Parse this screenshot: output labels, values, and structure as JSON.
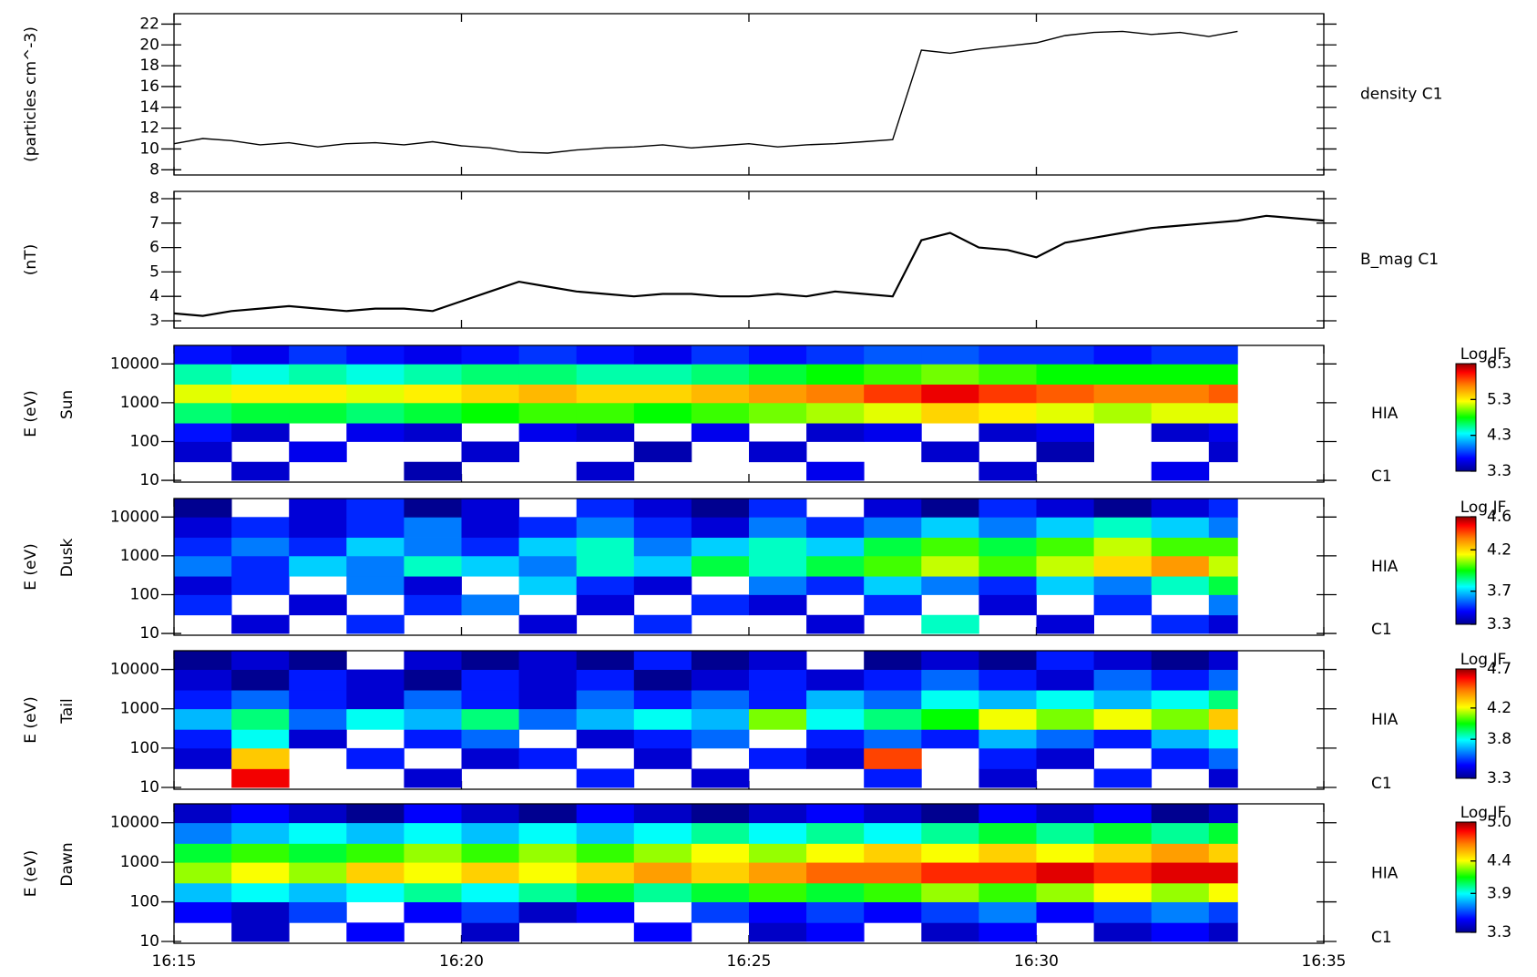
{
  "time_axis": {
    "xlim": [
      "16:15",
      "16:35"
    ],
    "xticks": [
      "16:15",
      "16:20",
      "16:25",
      "16:30",
      "16:35"
    ]
  },
  "chart_data": [
    {
      "type": "line",
      "ylabel": "(particles cm^-3)",
      "ylim": [
        7.5,
        23
      ],
      "yticks": [
        8,
        10,
        12,
        14,
        16,
        18,
        20,
        22
      ],
      "x": [
        "16:15",
        "16:15:30",
        "16:16",
        "16:16:30",
        "16:17",
        "16:17:30",
        "16:18",
        "16:18:30",
        "16:19",
        "16:19:30",
        "16:20",
        "16:20:30",
        "16:21",
        "16:21:30",
        "16:22",
        "16:22:30",
        "16:23",
        "16:23:30",
        "16:24",
        "16:24:30",
        "16:25",
        "16:25:30",
        "16:26",
        "16:26:30",
        "16:27",
        "16:27:30",
        "16:28",
        "16:28:30",
        "16:29",
        "16:29:30",
        "16:30",
        "16:30:30",
        "16:31",
        "16:31:30",
        "16:32",
        "16:32:30",
        "16:33",
        "16:33:30"
      ],
      "series": [
        {
          "name": "density C1",
          "color": "#000000",
          "values": [
            10.5,
            11,
            10.8,
            10.4,
            10.6,
            10.2,
            10.5,
            10.6,
            10.4,
            10.7,
            10.3,
            10.1,
            9.7,
            9.6,
            9.9,
            10.1,
            10.2,
            10.4,
            10.1,
            10.3,
            10.5,
            10.2,
            10.4,
            10.5,
            10.7,
            10.9,
            19.5,
            19.2,
            19.6,
            19.9,
            20.2,
            20.9,
            21.2,
            21.3,
            21.0,
            21.2,
            20.8,
            21.3
          ]
        }
      ]
    },
    {
      "type": "line",
      "ylabel": "(nT)",
      "ylim": [
        2.7,
        8.3
      ],
      "yticks": [
        3,
        4,
        5,
        6,
        7,
        8
      ],
      "x": [
        "16:15",
        "16:15:30",
        "16:16",
        "16:16:30",
        "16:17",
        "16:17:30",
        "16:18",
        "16:18:30",
        "16:19",
        "16:19:30",
        "16:20",
        "16:20:30",
        "16:21",
        "16:21:30",
        "16:22",
        "16:22:30",
        "16:23",
        "16:23:30",
        "16:24",
        "16:24:30",
        "16:25",
        "16:25:30",
        "16:26",
        "16:26:30",
        "16:27",
        "16:27:30",
        "16:28",
        "16:28:30",
        "16:29",
        "16:29:30",
        "16:30",
        "16:30:30",
        "16:31",
        "16:31:30",
        "16:32",
        "16:32:30",
        "16:33",
        "16:33:30",
        "16:34",
        "16:34:30",
        "16:35"
      ],
      "series": [
        {
          "name": "B_mag C1",
          "color": "#000000",
          "values": [
            3.3,
            3.2,
            3.4,
            3.5,
            3.6,
            3.5,
            3.4,
            3.5,
            3.5,
            3.4,
            3.8,
            4.2,
            4.6,
            4.4,
            4.2,
            4.1,
            4.0,
            4.1,
            4.1,
            4.0,
            4.0,
            4.1,
            4.0,
            4.2,
            4.1,
            4.0,
            6.3,
            6.6,
            6.0,
            5.9,
            5.6,
            6.2,
            6.4,
            6.6,
            6.8,
            6.9,
            7.0,
            7.1,
            7.3,
            7.2,
            7.1
          ]
        }
      ]
    },
    {
      "type": "heatmap",
      "ylabel": "E (eV)",
      "panel_label": "Sun",
      "instrument": "HIA",
      "spacecraft": "C1",
      "log_y": true,
      "colormap": "rainbow",
      "ylim": [
        9,
        30000
      ],
      "yticks": [
        10,
        100,
        1000,
        10000
      ],
      "xbins": [
        "16:15",
        "16:16",
        "16:17",
        "16:18",
        "16:19",
        "16:20",
        "16:21",
        "16:22",
        "16:23",
        "16:24",
        "16:25",
        "16:26",
        "16:27",
        "16:28",
        "16:29",
        "16:30",
        "16:31",
        "16:32",
        "16:33",
        "16:33:30"
      ],
      "ybins": [
        10,
        30,
        100,
        300,
        1000,
        3000,
        10000,
        30000
      ],
      "colorbar_title": "Log JF",
      "zlim": [
        3.3,
        6.3
      ],
      "zticks": [
        3.3,
        4.3,
        5.3,
        6.3
      ],
      "z": [
        [
          null,
          3.5,
          null,
          null,
          3.4,
          null,
          null,
          3.5,
          null,
          null,
          null,
          3.6,
          null,
          null,
          3.5,
          null,
          null,
          3.6,
          null
        ],
        [
          3.5,
          null,
          3.6,
          null,
          null,
          3.5,
          null,
          null,
          3.4,
          null,
          3.5,
          null,
          null,
          3.5,
          null,
          3.4,
          null,
          null,
          3.5
        ],
        [
          3.7,
          3.5,
          null,
          3.6,
          3.5,
          null,
          3.6,
          3.5,
          null,
          3.6,
          null,
          3.5,
          3.6,
          null,
          3.5,
          3.6,
          null,
          3.5,
          3.6
        ],
        [
          4.6,
          4.7,
          4.7,
          4.6,
          4.7,
          4.8,
          4.9,
          4.9,
          4.8,
          4.9,
          5.0,
          5.1,
          5.2,
          5.4,
          5.3,
          5.2,
          5.1,
          5.2,
          5.2
        ],
        [
          5.2,
          5.3,
          5.3,
          5.2,
          5.3,
          5.4,
          5.5,
          5.4,
          5.4,
          5.5,
          5.6,
          5.7,
          5.9,
          6.1,
          5.9,
          5.8,
          5.7,
          5.7,
          5.8
        ],
        [
          4.5,
          4.4,
          4.5,
          4.4,
          4.5,
          4.6,
          4.6,
          4.5,
          4.5,
          4.6,
          4.7,
          4.8,
          4.9,
          5.0,
          4.9,
          4.8,
          4.8,
          4.8,
          4.8
        ],
        [
          3.7,
          3.6,
          3.8,
          3.7,
          3.6,
          3.7,
          3.8,
          3.7,
          3.6,
          3.8,
          3.7,
          3.8,
          3.9,
          3.9,
          3.8,
          3.8,
          3.7,
          3.8,
          3.8
        ]
      ]
    },
    {
      "type": "heatmap",
      "ylabel": "E (eV)",
      "panel_label": "Dusk",
      "instrument": "HIA",
      "spacecraft": "C1",
      "log_y": true,
      "colormap": "rainbow",
      "ylim": [
        9,
        30000
      ],
      "yticks": [
        10,
        100,
        1000,
        10000
      ],
      "xbins": [
        "16:15",
        "16:16",
        "16:17",
        "16:18",
        "16:19",
        "16:20",
        "16:21",
        "16:22",
        "16:23",
        "16:24",
        "16:25",
        "16:26",
        "16:27",
        "16:28",
        "16:29",
        "16:30",
        "16:31",
        "16:32",
        "16:33",
        "16:33:30"
      ],
      "ybins": [
        10,
        30,
        100,
        300,
        1000,
        3000,
        10000,
        30000
      ],
      "colorbar_title": "Log JF",
      "zlim": [
        3.3,
        4.6
      ],
      "zticks": [
        3.3,
        3.7,
        4.2,
        4.6
      ],
      "z": [
        [
          null,
          3.4,
          null,
          3.5,
          null,
          null,
          3.4,
          null,
          3.5,
          null,
          null,
          3.4,
          null,
          3.8,
          null,
          3.4,
          null,
          3.5,
          3.4
        ],
        [
          3.5,
          null,
          3.4,
          null,
          3.5,
          3.6,
          null,
          3.4,
          null,
          3.5,
          3.4,
          null,
          3.5,
          null,
          3.4,
          null,
          3.5,
          null,
          3.6
        ],
        [
          3.4,
          3.5,
          null,
          3.6,
          3.4,
          null,
          3.7,
          3.5,
          3.4,
          null,
          3.6,
          3.5,
          3.7,
          3.6,
          3.5,
          3.7,
          3.6,
          3.8,
          3.9
        ],
        [
          3.6,
          3.5,
          3.7,
          3.6,
          3.8,
          3.7,
          3.6,
          3.8,
          3.7,
          3.9,
          3.8,
          3.9,
          4.0,
          4.1,
          4.0,
          4.1,
          4.2,
          4.3,
          4.1
        ],
        [
          3.5,
          3.6,
          3.5,
          3.7,
          3.6,
          3.5,
          3.7,
          3.8,
          3.6,
          3.7,
          3.8,
          3.7,
          3.9,
          4.0,
          3.9,
          4.0,
          4.1,
          4.0,
          4.0
        ],
        [
          3.4,
          3.5,
          3.4,
          3.5,
          3.6,
          3.4,
          3.5,
          3.6,
          3.5,
          3.4,
          3.6,
          3.5,
          3.6,
          3.7,
          3.6,
          3.7,
          3.8,
          3.7,
          3.6
        ],
        [
          3.3,
          null,
          3.4,
          3.5,
          3.3,
          3.4,
          null,
          3.5,
          3.4,
          3.3,
          3.5,
          null,
          3.4,
          3.3,
          3.5,
          3.4,
          3.3,
          3.4,
          3.5
        ]
      ]
    },
    {
      "type": "heatmap",
      "ylabel": "E (eV)",
      "panel_label": "Tail",
      "instrument": "HIA",
      "spacecraft": "C1",
      "log_y": true,
      "colormap": "rainbow",
      "ylim": [
        9,
        30000
      ],
      "yticks": [
        10,
        100,
        1000,
        10000
      ],
      "xbins": [
        "16:15",
        "16:16",
        "16:17",
        "16:18",
        "16:19",
        "16:20",
        "16:21",
        "16:22",
        "16:23",
        "16:24",
        "16:25",
        "16:26",
        "16:27",
        "16:28",
        "16:29",
        "16:30",
        "16:31",
        "16:32",
        "16:33",
        "16:33:30"
      ],
      "ybins": [
        10,
        30,
        100,
        300,
        1000,
        3000,
        10000,
        30000
      ],
      "colorbar_title": "Log JF",
      "zlim": [
        3.3,
        4.7
      ],
      "zticks": [
        3.3,
        3.8,
        4.2,
        4.7
      ],
      "z": [
        [
          null,
          4.6,
          null,
          null,
          3.4,
          null,
          null,
          3.5,
          null,
          3.4,
          null,
          null,
          3.5,
          null,
          3.4,
          null,
          3.5,
          null,
          3.4
        ],
        [
          3.4,
          4.3,
          null,
          3.5,
          null,
          3.4,
          3.5,
          null,
          3.4,
          null,
          3.5,
          3.4,
          4.5,
          null,
          3.5,
          3.4,
          null,
          3.5,
          3.6
        ],
        [
          3.5,
          3.8,
          3.4,
          null,
          3.5,
          3.6,
          null,
          3.4,
          3.5,
          3.6,
          null,
          3.5,
          3.6,
          3.5,
          3.7,
          3.6,
          3.5,
          3.7,
          3.8
        ],
        [
          3.7,
          3.9,
          3.6,
          3.8,
          3.7,
          3.9,
          3.6,
          3.7,
          3.8,
          3.7,
          4.1,
          3.8,
          3.9,
          4.0,
          4.2,
          4.1,
          4.2,
          4.1,
          4.3
        ],
        [
          3.5,
          3.6,
          3.5,
          3.4,
          3.6,
          3.5,
          3.4,
          3.6,
          3.5,
          3.6,
          3.5,
          3.7,
          3.6,
          3.8,
          3.7,
          3.8,
          3.7,
          3.8,
          3.9
        ],
        [
          3.4,
          3.3,
          3.5,
          3.4,
          3.3,
          3.5,
          3.4,
          3.5,
          3.3,
          3.4,
          3.5,
          3.4,
          3.5,
          3.6,
          3.5,
          3.4,
          3.6,
          3.5,
          3.6
        ],
        [
          3.3,
          3.4,
          3.3,
          null,
          3.4,
          3.3,
          3.4,
          3.3,
          3.5,
          3.3,
          3.4,
          null,
          3.3,
          3.4,
          3.3,
          3.5,
          3.4,
          3.3,
          3.4
        ]
      ]
    },
    {
      "type": "heatmap",
      "ylabel": "E (eV)",
      "panel_label": "Dawn",
      "instrument": "HIA",
      "spacecraft": "C1",
      "log_y": true,
      "colormap": "rainbow",
      "ylim": [
        9,
        30000
      ],
      "yticks": [
        10,
        100,
        1000,
        10000
      ],
      "xbins": [
        "16:15",
        "16:16",
        "16:17",
        "16:18",
        "16:19",
        "16:20",
        "16:21",
        "16:22",
        "16:23",
        "16:24",
        "16:25",
        "16:26",
        "16:27",
        "16:28",
        "16:29",
        "16:30",
        "16:31",
        "16:32",
        "16:33",
        "16:33:30"
      ],
      "ybins": [
        10,
        30,
        100,
        300,
        1000,
        3000,
        10000,
        30000
      ],
      "colorbar_title": "Log JF",
      "zlim": [
        3.3,
        5
      ],
      "zticks": [
        3.3,
        3.9,
        4.4,
        {
          "value": 5,
          "label": "5.0"
        }
      ],
      "z": [
        [
          null,
          3.4,
          null,
          3.5,
          null,
          3.4,
          null,
          null,
          3.5,
          null,
          3.4,
          3.5,
          null,
          3.4,
          3.5,
          null,
          3.4,
          3.5,
          3.4
        ],
        [
          3.5,
          3.4,
          3.6,
          null,
          3.5,
          3.6,
          3.4,
          3.5,
          null,
          3.6,
          3.5,
          3.6,
          3.5,
          3.6,
          3.7,
          3.5,
          3.6,
          3.7,
          3.6
        ],
        [
          3.8,
          3.9,
          3.8,
          3.9,
          4.0,
          3.9,
          4.0,
          4.1,
          4.0,
          4.1,
          4.2,
          4.1,
          4.2,
          4.3,
          4.2,
          4.3,
          4.4,
          4.3,
          4.4
        ],
        [
          4.3,
          4.4,
          4.3,
          4.5,
          4.4,
          4.5,
          4.4,
          4.5,
          4.6,
          4.5,
          4.6,
          4.7,
          4.7,
          4.8,
          4.8,
          4.9,
          4.8,
          4.9,
          4.9
        ],
        [
          4.1,
          4.2,
          4.1,
          4.2,
          4.3,
          4.2,
          4.3,
          4.2,
          4.3,
          4.4,
          4.3,
          4.4,
          4.5,
          4.4,
          4.5,
          4.4,
          4.5,
          4.6,
          4.5
        ],
        [
          3.7,
          3.8,
          3.9,
          3.8,
          3.9,
          3.8,
          3.9,
          3.8,
          3.9,
          4.0,
          3.9,
          4.0,
          3.9,
          4.0,
          4.1,
          4.0,
          4.1,
          4.0,
          4.1
        ],
        [
          3.4,
          3.5,
          3.4,
          3.3,
          3.5,
          3.4,
          3.3,
          3.5,
          3.4,
          3.3,
          3.4,
          3.5,
          3.4,
          3.3,
          3.5,
          3.4,
          3.5,
          3.3,
          3.4
        ]
      ]
    }
  ]
}
